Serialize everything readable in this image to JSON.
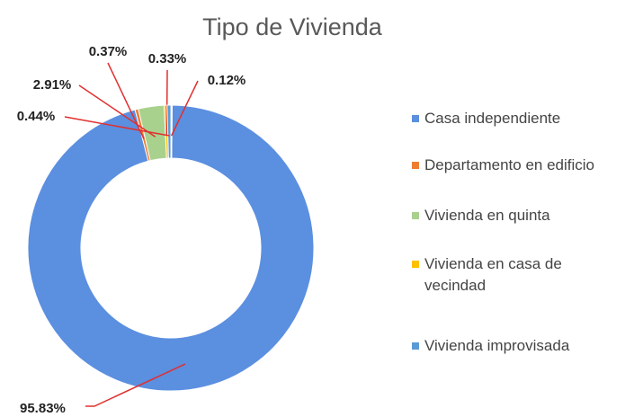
{
  "chart_data": {
    "type": "donut",
    "title": "Tipo de Vivienda",
    "categories": [
      "Casa independiente",
      "Departamento en edificio",
      "Vivienda en quinta",
      "Vivienda en casa de vecindad",
      "Vivienda improvisada",
      null
    ],
    "values": [
      95.83,
      0.37,
      2.91,
      0.33,
      0.44,
      0.12
    ],
    "value_labels": [
      "95.83%",
      "0.37%",
      "2.91%",
      "0.33%",
      "0.44%",
      "0.12%"
    ],
    "colors": [
      "#5b8fe0",
      "#ed7d31",
      "#a9d18e",
      "#ffc000",
      "#5b9bd5",
      "#ffffff"
    ],
    "legend": "right"
  }
}
